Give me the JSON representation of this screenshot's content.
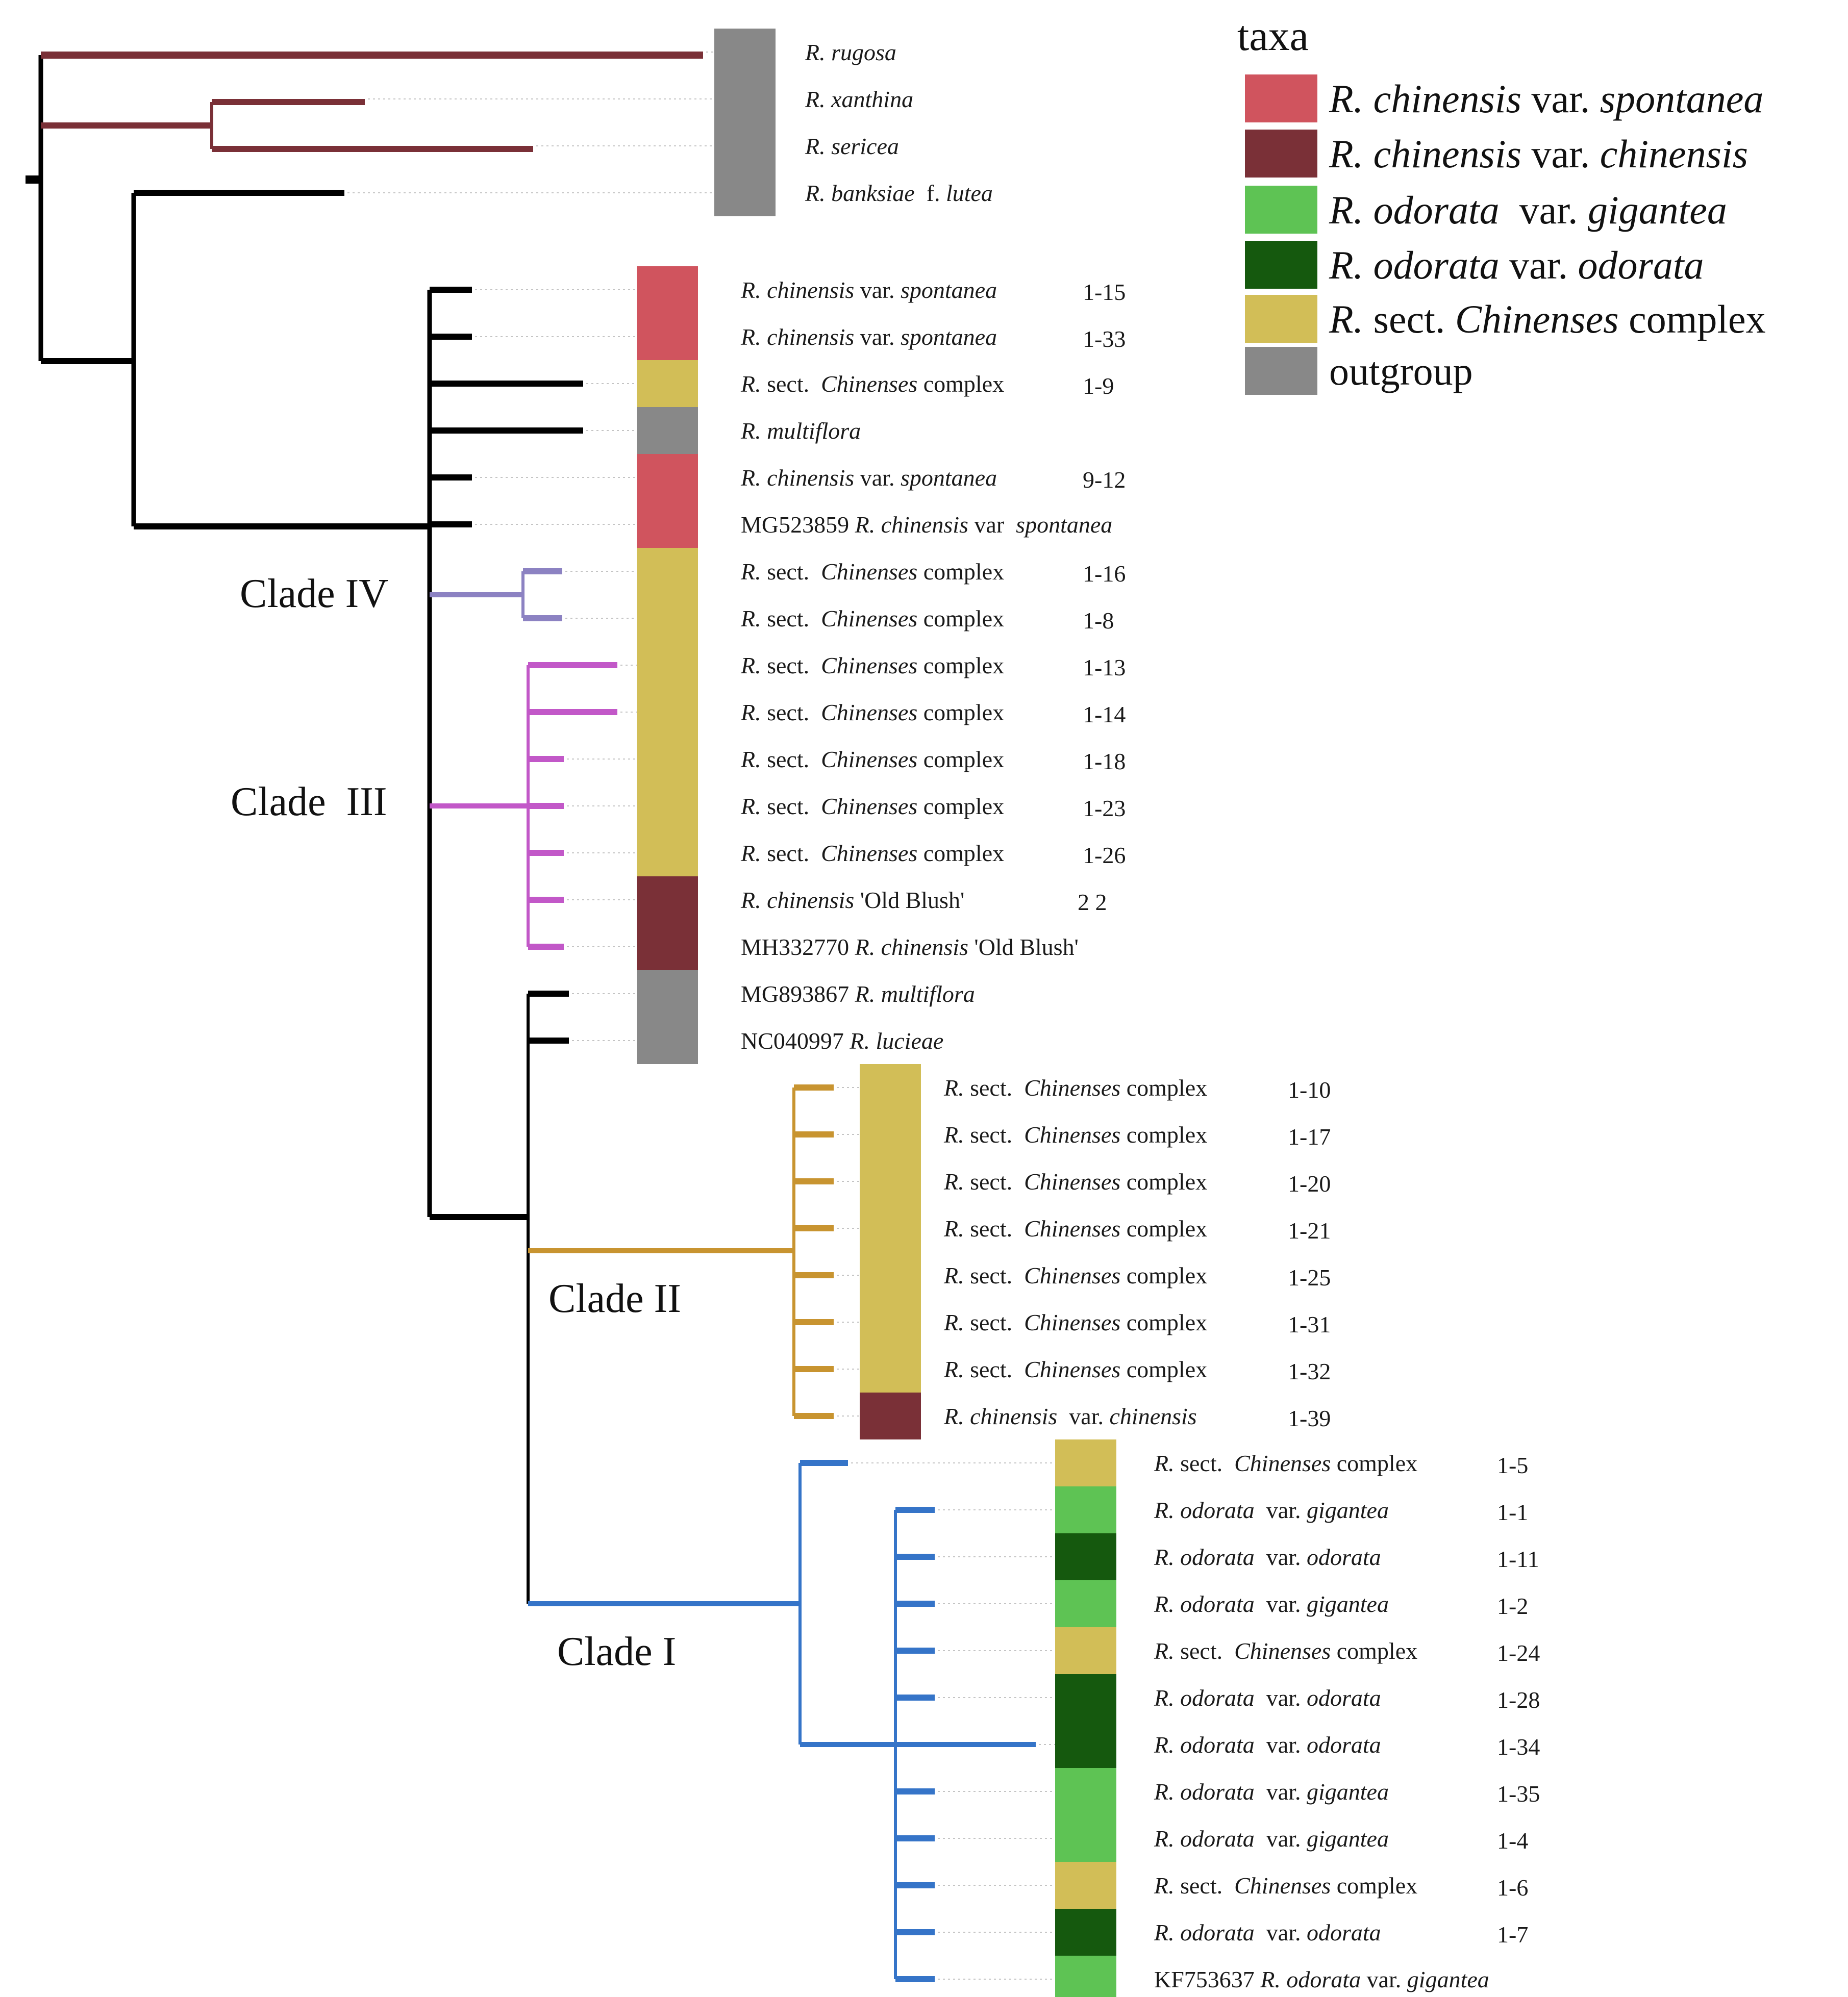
{
  "colors": {
    "spontanea": "#D0545E",
    "chinensis": "#7A3037",
    "gigantea": "#5EC354",
    "odorata": "#15590E",
    "complex": "#D2BE57",
    "outgroup": "#888888",
    "branch_outgroup": "#7A3037",
    "branch_default": "#000000",
    "branch_clade4": "#8C82C2",
    "branch_clade3": "#C258C8",
    "branch_clade2": "#C89430",
    "branch_clade1": "#3574C8"
  },
  "legend": {
    "title": "taxa",
    "items": [
      {
        "key": "spontanea",
        "parts": [
          [
            "R. chinensis",
            true
          ],
          [
            " var. ",
            false
          ],
          [
            "spontanea",
            true
          ]
        ]
      },
      {
        "key": "chinensis",
        "parts": [
          [
            "R. chinensis",
            true
          ],
          [
            " var. ",
            false
          ],
          [
            "chinensis",
            true
          ]
        ]
      },
      {
        "key": "gigantea",
        "parts": [
          [
            "R. odorata",
            true
          ],
          [
            "  var. ",
            false
          ],
          [
            "gigantea",
            true
          ]
        ]
      },
      {
        "key": "odorata",
        "parts": [
          [
            "R. odorata",
            true
          ],
          [
            " var. ",
            false
          ],
          [
            "odorata",
            true
          ]
        ]
      },
      {
        "key": "complex",
        "parts": [
          [
            "R.",
            true
          ],
          [
            " sect. ",
            false
          ],
          [
            "Chinenses",
            true
          ],
          [
            " complex",
            false
          ]
        ]
      },
      {
        "key": "outgroup",
        "parts": [
          [
            "outgroup",
            false
          ]
        ]
      }
    ]
  },
  "clades": [
    {
      "id": "clade4",
      "label": "Clade IV"
    },
    {
      "id": "clade3",
      "label": "Clade  III"
    },
    {
      "id": "clade2",
      "label": "Clade II"
    },
    {
      "id": "clade1",
      "label": "Clade I"
    }
  ],
  "tips": [
    {
      "taxon": "outgroup",
      "code": "",
      "parts": [
        [
          "R. rugosa",
          true
        ]
      ]
    },
    {
      "taxon": "outgroup",
      "code": "",
      "parts": [
        [
          "R. xanthina",
          true
        ]
      ]
    },
    {
      "taxon": "outgroup",
      "code": "",
      "parts": [
        [
          "R. sericea",
          true
        ]
      ]
    },
    {
      "taxon": "outgroup",
      "code": "",
      "parts": [
        [
          "R. banksiae",
          true
        ],
        [
          "  f. ",
          false
        ],
        [
          "lutea",
          true
        ]
      ]
    },
    {
      "taxon": "spontanea",
      "code": "1-15",
      "parts": [
        [
          "R. chinensis",
          true
        ],
        [
          " var. ",
          false
        ],
        [
          "spontanea",
          true
        ]
      ]
    },
    {
      "taxon": "spontanea",
      "code": "1-33",
      "parts": [
        [
          "R. chinensis",
          true
        ],
        [
          " var. ",
          false
        ],
        [
          "spontanea",
          true
        ]
      ]
    },
    {
      "taxon": "complex",
      "code": "1-9",
      "parts": [
        [
          "R.",
          true
        ],
        [
          " sect.  ",
          false
        ],
        [
          "Chinenses",
          true
        ],
        [
          " complex",
          false
        ]
      ]
    },
    {
      "taxon": "outgroup",
      "code": "",
      "parts": [
        [
          "R. multiflora",
          true
        ]
      ]
    },
    {
      "taxon": "spontanea",
      "code": "9-12",
      "parts": [
        [
          "R. chinensis",
          true
        ],
        [
          " var. ",
          false
        ],
        [
          "spontanea",
          true
        ]
      ]
    },
    {
      "taxon": "spontanea",
      "code": "",
      "parts": [
        [
          "MG523859 ",
          false
        ],
        [
          "R. chinensis",
          true
        ],
        [
          " var  ",
          false
        ],
        [
          "spontanea",
          true
        ]
      ]
    },
    {
      "taxon": "complex",
      "code": "1-16",
      "parts": [
        [
          "R.",
          true
        ],
        [
          " sect.  ",
          false
        ],
        [
          "Chinenses",
          true
        ],
        [
          " complex",
          false
        ]
      ]
    },
    {
      "taxon": "complex",
      "code": "1-8",
      "parts": [
        [
          "R.",
          true
        ],
        [
          " sect.  ",
          false
        ],
        [
          "Chinenses",
          true
        ],
        [
          " complex",
          false
        ]
      ]
    },
    {
      "taxon": "complex",
      "code": "1-13",
      "parts": [
        [
          "R.",
          true
        ],
        [
          " sect.  ",
          false
        ],
        [
          "Chinenses",
          true
        ],
        [
          " complex",
          false
        ]
      ]
    },
    {
      "taxon": "complex",
      "code": "1-14",
      "parts": [
        [
          "R.",
          true
        ],
        [
          " sect.  ",
          false
        ],
        [
          "Chinenses",
          true
        ],
        [
          " complex",
          false
        ]
      ]
    },
    {
      "taxon": "complex",
      "code": "1-18",
      "parts": [
        [
          "R.",
          true
        ],
        [
          " sect.  ",
          false
        ],
        [
          "Chinenses",
          true
        ],
        [
          " complex",
          false
        ]
      ]
    },
    {
      "taxon": "complex",
      "code": "1-23",
      "parts": [
        [
          "R.",
          true
        ],
        [
          " sect.  ",
          false
        ],
        [
          "Chinenses",
          true
        ],
        [
          " complex",
          false
        ]
      ]
    },
    {
      "taxon": "complex",
      "code": "1-26",
      "parts": [
        [
          "R.",
          true
        ],
        [
          " sect.  ",
          false
        ],
        [
          "Chinenses",
          true
        ],
        [
          " complex",
          false
        ]
      ]
    },
    {
      "taxon": "chinensis",
      "code": "2 2",
      "parts": [
        [
          "R. chinensis",
          true
        ],
        [
          " 'Old Blush'",
          false
        ]
      ]
    },
    {
      "taxon": "chinensis",
      "code": "",
      "parts": [
        [
          "MH332770 ",
          false
        ],
        [
          "R. chinensis",
          true
        ],
        [
          " 'Old Blush'",
          false
        ]
      ]
    },
    {
      "taxon": "outgroup",
      "code": "",
      "parts": [
        [
          "MG893867 ",
          false
        ],
        [
          "R. multiflora",
          true
        ]
      ]
    },
    {
      "taxon": "outgroup",
      "code": "",
      "parts": [
        [
          "NC040997 ",
          false
        ],
        [
          "R. lucieae",
          true
        ]
      ]
    },
    {
      "taxon": "complex",
      "code": "1-10",
      "parts": [
        [
          "R.",
          true
        ],
        [
          " sect.  ",
          false
        ],
        [
          "Chinenses",
          true
        ],
        [
          " complex",
          false
        ]
      ]
    },
    {
      "taxon": "complex",
      "code": "1-17",
      "parts": [
        [
          "R.",
          true
        ],
        [
          " sect.  ",
          false
        ],
        [
          "Chinenses",
          true
        ],
        [
          " complex",
          false
        ]
      ]
    },
    {
      "taxon": "complex",
      "code": "1-20",
      "parts": [
        [
          "R.",
          true
        ],
        [
          " sect.  ",
          false
        ],
        [
          "Chinenses",
          true
        ],
        [
          " complex",
          false
        ]
      ]
    },
    {
      "taxon": "complex",
      "code": "1-21",
      "parts": [
        [
          "R.",
          true
        ],
        [
          " sect.  ",
          false
        ],
        [
          "Chinenses",
          true
        ],
        [
          " complex",
          false
        ]
      ]
    },
    {
      "taxon": "complex",
      "code": "1-25",
      "parts": [
        [
          "R.",
          true
        ],
        [
          " sect.  ",
          false
        ],
        [
          "Chinenses",
          true
        ],
        [
          " complex",
          false
        ]
      ]
    },
    {
      "taxon": "complex",
      "code": "1-31",
      "parts": [
        [
          "R.",
          true
        ],
        [
          " sect.  ",
          false
        ],
        [
          "Chinenses",
          true
        ],
        [
          " complex",
          false
        ]
      ]
    },
    {
      "taxon": "complex",
      "code": "1-32",
      "parts": [
        [
          "R.",
          true
        ],
        [
          " sect.  ",
          false
        ],
        [
          "Chinenses",
          true
        ],
        [
          " complex",
          false
        ]
      ]
    },
    {
      "taxon": "chinensis",
      "code": "1-39",
      "parts": [
        [
          "R. chinensis",
          true
        ],
        [
          "  var. ",
          false
        ],
        [
          "chinensis",
          true
        ]
      ]
    },
    {
      "taxon": "complex",
      "code": "1-5",
      "parts": [
        [
          "R.",
          true
        ],
        [
          " sect.  ",
          false
        ],
        [
          "Chinenses",
          true
        ],
        [
          " complex",
          false
        ]
      ]
    },
    {
      "taxon": "gigantea",
      "code": "1-1",
      "parts": [
        [
          "R. odorata",
          true
        ],
        [
          "  var. ",
          false
        ],
        [
          "gigantea",
          true
        ]
      ]
    },
    {
      "taxon": "odorata",
      "code": "1-11",
      "parts": [
        [
          "R. odorata",
          true
        ],
        [
          "  var. ",
          false
        ],
        [
          "odorata",
          true
        ]
      ]
    },
    {
      "taxon": "gigantea",
      "code": "1-2",
      "parts": [
        [
          "R. odorata",
          true
        ],
        [
          "  var. ",
          false
        ],
        [
          "gigantea",
          true
        ]
      ]
    },
    {
      "taxon": "complex",
      "code": "1-24",
      "parts": [
        [
          "R.",
          true
        ],
        [
          " sect.  ",
          false
        ],
        [
          "Chinenses",
          true
        ],
        [
          " complex",
          false
        ]
      ]
    },
    {
      "taxon": "odorata",
      "code": "1-28",
      "parts": [
        [
          "R. odorata",
          true
        ],
        [
          "  var. ",
          false
        ],
        [
          "odorata",
          true
        ]
      ]
    },
    {
      "taxon": "odorata",
      "code": "1-34",
      "parts": [
        [
          "R. odorata",
          true
        ],
        [
          "  var. ",
          false
        ],
        [
          "odorata",
          true
        ]
      ]
    },
    {
      "taxon": "gigantea",
      "code": "1-35",
      "parts": [
        [
          "R. odorata",
          true
        ],
        [
          "  var. ",
          false
        ],
        [
          "gigantea",
          true
        ]
      ]
    },
    {
      "taxon": "gigantea",
      "code": "1-4",
      "parts": [
        [
          "R. odorata",
          true
        ],
        [
          "  var. ",
          false
        ],
        [
          "gigantea",
          true
        ]
      ]
    },
    {
      "taxon": "complex",
      "code": "1-6",
      "parts": [
        [
          "R.",
          true
        ],
        [
          " sect.  ",
          false
        ],
        [
          "Chinenses",
          true
        ],
        [
          " complex",
          false
        ]
      ]
    },
    {
      "taxon": "odorata",
      "code": "1-7",
      "parts": [
        [
          "R. odorata",
          true
        ],
        [
          "  var. ",
          false
        ],
        [
          "odorata",
          true
        ]
      ]
    },
    {
      "taxon": "gigantea",
      "code": "",
      "parts": [
        [
          "KF753637 ",
          false
        ],
        [
          "R. odorata",
          true
        ],
        [
          " var. ",
          false
        ],
        [
          "gigantea",
          true
        ]
      ]
    }
  ]
}
